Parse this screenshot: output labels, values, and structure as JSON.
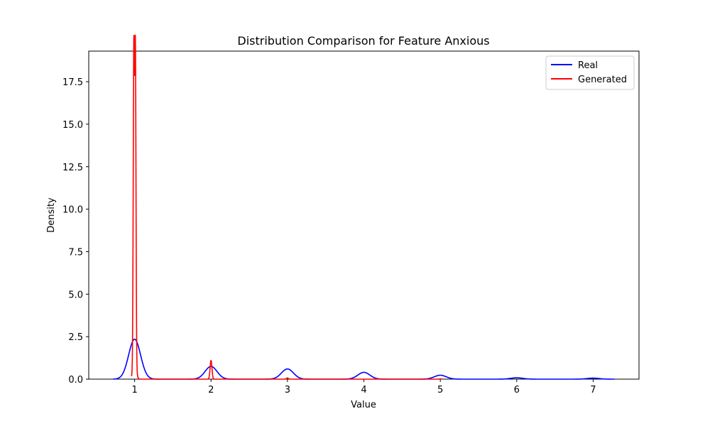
{
  "chart_data": {
    "type": "line",
    "title": "Distribution Comparison for Feature Anxious",
    "xlabel": "Value",
    "ylabel": "Density",
    "xlim": [
      0.4,
      7.6
    ],
    "ylim": [
      0,
      19.3
    ],
    "xticks": [
      1,
      2,
      3,
      4,
      5,
      6,
      7
    ],
    "xtick_labels": [
      "1",
      "2",
      "3",
      "4",
      "5",
      "6",
      "7"
    ],
    "yticks": [
      0,
      2.5,
      5,
      7.5,
      10,
      12.5,
      15,
      17.5
    ],
    "ytick_labels": [
      "0.0",
      "2.5",
      "5.0",
      "7.5",
      "10.0",
      "12.5",
      "15.0",
      "17.5"
    ],
    "grid": false,
    "legend_position": "top-right",
    "series": [
      {
        "name": "Real",
        "color": "#0000ff",
        "domain": [
          0.72,
          7.28
        ],
        "components": [
          {
            "center": 1,
            "peak": 2.35,
            "sigma": 0.078
          },
          {
            "center": 2,
            "peak": 0.75,
            "sigma": 0.078
          },
          {
            "center": 3,
            "peak": 0.6,
            "sigma": 0.078
          },
          {
            "center": 4,
            "peak": 0.4,
            "sigma": 0.078
          },
          {
            "center": 5,
            "peak": 0.23,
            "sigma": 0.078
          },
          {
            "center": 6,
            "peak": 0.08,
            "sigma": 0.078
          },
          {
            "center": 7,
            "peak": 0.06,
            "sigma": 0.078
          }
        ]
      },
      {
        "name": "Generated",
        "color": "#ff0000",
        "domain": [
          0.96,
          5.02
        ],
        "peak_x": [
          0.99,
          1.01
        ],
        "components": [
          {
            "center": 0.99,
            "peak": 18.2,
            "sigma": 0.008
          },
          {
            "center": 1.01,
            "peak": 18.2,
            "sigma": 0.008
          },
          {
            "center": 1.0,
            "peak": 1.2,
            "sigma": 0.02
          },
          {
            "center": 2.0,
            "peak": 1.1,
            "sigma": 0.012
          },
          {
            "center": 3.0,
            "peak": 0.07,
            "sigma": 0.012
          },
          {
            "center": 5.0,
            "peak": 0.02,
            "sigma": 0.01
          }
        ]
      }
    ]
  }
}
